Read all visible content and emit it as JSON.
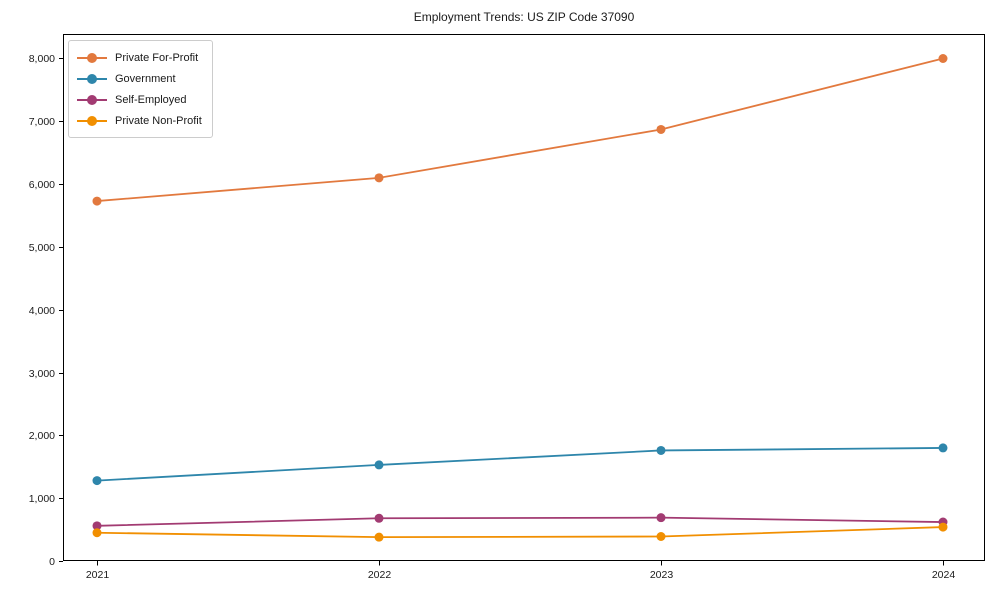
{
  "chart_data": {
    "type": "line",
    "title": "Employment Trends: US ZIP Code 37090",
    "xlabel": "",
    "ylabel": "",
    "x": [
      "2021",
      "2022",
      "2023",
      "2024"
    ],
    "series": [
      {
        "name": "Private For-Profit",
        "color": "#E2793E",
        "values": [
          5730,
          6100,
          6870,
          8000
        ]
      },
      {
        "name": "Government",
        "color": "#2E86AB",
        "values": [
          1280,
          1530,
          1760,
          1800
        ]
      },
      {
        "name": "Self-Employed",
        "color": "#A23B72",
        "values": [
          560,
          680,
          690,
          620
        ]
      },
      {
        "name": "Private Non-Profit",
        "color": "#F18F01",
        "values": [
          450,
          380,
          390,
          540
        ]
      }
    ],
    "ylim": [
      0,
      8390
    ],
    "yticks": [
      0,
      1000,
      2000,
      3000,
      4000,
      5000,
      6000,
      7000,
      8000
    ],
    "ytick_labels": [
      "0",
      "1,000",
      "2,000",
      "3,000",
      "4,000",
      "5,000",
      "6,000",
      "7,000",
      "8,000"
    ],
    "grid": false,
    "legend_position": "upper-left",
    "frame": "full-box",
    "axis_color": "#000000"
  }
}
